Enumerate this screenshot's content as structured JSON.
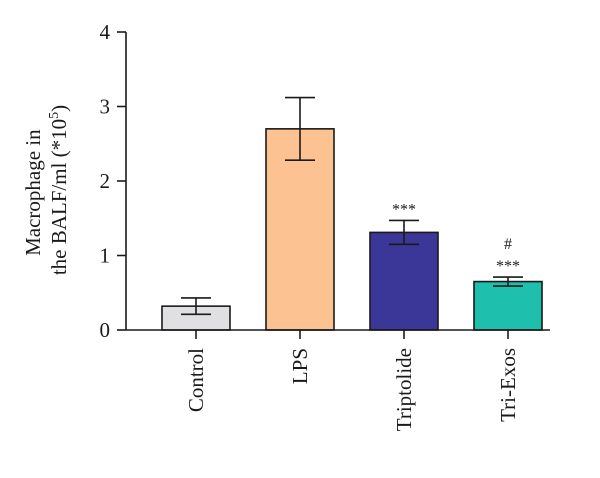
{
  "chart_data": {
    "type": "bar",
    "categories": [
      "Control",
      "LPS",
      "Triptolide",
      "Tri-Exos"
    ],
    "values": [
      0.32,
      2.7,
      1.31,
      0.65
    ],
    "errors": [
      0.11,
      0.42,
      0.16,
      0.06
    ],
    "colors": [
      "#e0e0e3",
      "#fcc291",
      "#3b3798",
      "#1fbfae"
    ],
    "annotations": [
      {
        "category": "Triptolide",
        "lines": [
          "***"
        ]
      },
      {
        "category": "Tri-Exos",
        "lines": [
          "#",
          "***"
        ]
      }
    ],
    "ylabel_line1": "Macrophage in",
    "ylabel_line2_prefix": "the BALF/ml (*10",
    "ylabel_exponent": "5",
    "ylabel_line2_suffix": ")",
    "ylim": [
      0,
      4
    ],
    "yticks": [
      "0",
      "1",
      "2",
      "3",
      "4"
    ],
    "grid": false,
    "legend": "none"
  }
}
